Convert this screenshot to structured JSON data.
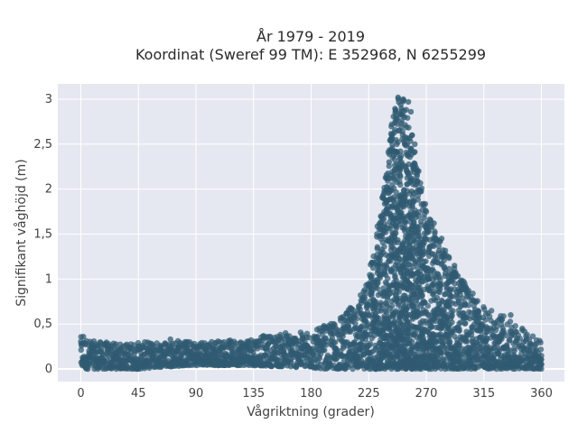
{
  "chart_data": {
    "type": "scatter",
    "title": "År 1979 - 2019",
    "subtitle": "Koordinat (Sweref 99 TM): E 352968, N 6255299",
    "xlabel": "Vågriktning (grader)",
    "ylabel": "Signifikant våghöjd (m)",
    "xlim": [
      -18,
      378
    ],
    "ylim": [
      -0.14,
      3.17
    ],
    "xticks": [
      0,
      45,
      90,
      135,
      180,
      225,
      270,
      315,
      360
    ],
    "xtick_labels": [
      "0",
      "45",
      "90",
      "135",
      "180",
      "225",
      "270",
      "315",
      "360"
    ],
    "yticks": [
      0,
      0.5,
      1,
      1.5,
      2,
      2.5,
      3
    ],
    "ytick_labels": [
      "0",
      "0,5",
      "1",
      "1,5",
      "2",
      "2,5",
      "3"
    ],
    "grid": true,
    "marker_color": "#2f5a72",
    "plot_background": "#e5e8f0",
    "envelope": {
      "description": "approximate upper extent of the point cloud by direction",
      "x": [
        0,
        10,
        20,
        30,
        45,
        60,
        75,
        90,
        105,
        120,
        135,
        150,
        165,
        180,
        195,
        205,
        215,
        220,
        225,
        230,
        235,
        240,
        245,
        250,
        255,
        260,
        265,
        270,
        275,
        280,
        290,
        300,
        315,
        330,
        345,
        360
      ],
      "y_max": [
        0.36,
        0.31,
        0.3,
        0.28,
        0.3,
        0.3,
        0.33,
        0.3,
        0.32,
        0.32,
        0.36,
        0.38,
        0.4,
        0.42,
        0.5,
        0.6,
        0.75,
        0.88,
        1.05,
        1.4,
        1.85,
        2.4,
        2.95,
        3.05,
        2.9,
        2.5,
        2.1,
        1.8,
        1.6,
        1.45,
        1.2,
        0.95,
        0.7,
        0.6,
        0.45,
        0.3
      ],
      "y_min": [
        0.0,
        0.0,
        0.0,
        0.0,
        0.0,
        0.02,
        0.03,
        0.04,
        0.04,
        0.04,
        0.04,
        0.03,
        0.02,
        0.01,
        0.0,
        0.0,
        0.0,
        0.0,
        0.0,
        0.0,
        0.0,
        0.0,
        0.0,
        0.0,
        0.0,
        0.0,
        0.0,
        0.0,
        0.0,
        0.0,
        0.0,
        0.0,
        0.0,
        0.0,
        0.0,
        0.0
      ]
    },
    "outlier_points": [
      {
        "x": 248,
        "y": 3.02
      },
      {
        "x": 252,
        "y": 3.0
      },
      {
        "x": 256,
        "y": 2.97
      },
      {
        "x": 250,
        "y": 2.94
      },
      {
        "x": 246,
        "y": 2.88
      },
      {
        "x": 258,
        "y": 2.86
      },
      {
        "x": 253,
        "y": 2.8
      },
      {
        "x": 259,
        "y": 2.6
      },
      {
        "x": 261,
        "y": 2.5
      },
      {
        "x": 243,
        "y": 2.6
      },
      {
        "x": 241,
        "y": 2.3
      },
      {
        "x": 264,
        "y": 2.2
      },
      {
        "x": 270,
        "y": 1.75
      },
      {
        "x": 276,
        "y": 1.62
      },
      {
        "x": 282,
        "y": 1.45
      },
      {
        "x": 292,
        "y": 1.15
      },
      {
        "x": 300,
        "y": 0.95
      },
      {
        "x": 336,
        "y": 0.6
      },
      {
        "x": 345,
        "y": 0.45
      },
      {
        "x": 2,
        "y": 0.36
      },
      {
        "x": 70,
        "y": 0.33
      },
      {
        "x": 160,
        "y": 0.4
      },
      {
        "x": 190,
        "y": 0.48
      },
      {
        "x": 205,
        "y": 0.58
      }
    ]
  }
}
